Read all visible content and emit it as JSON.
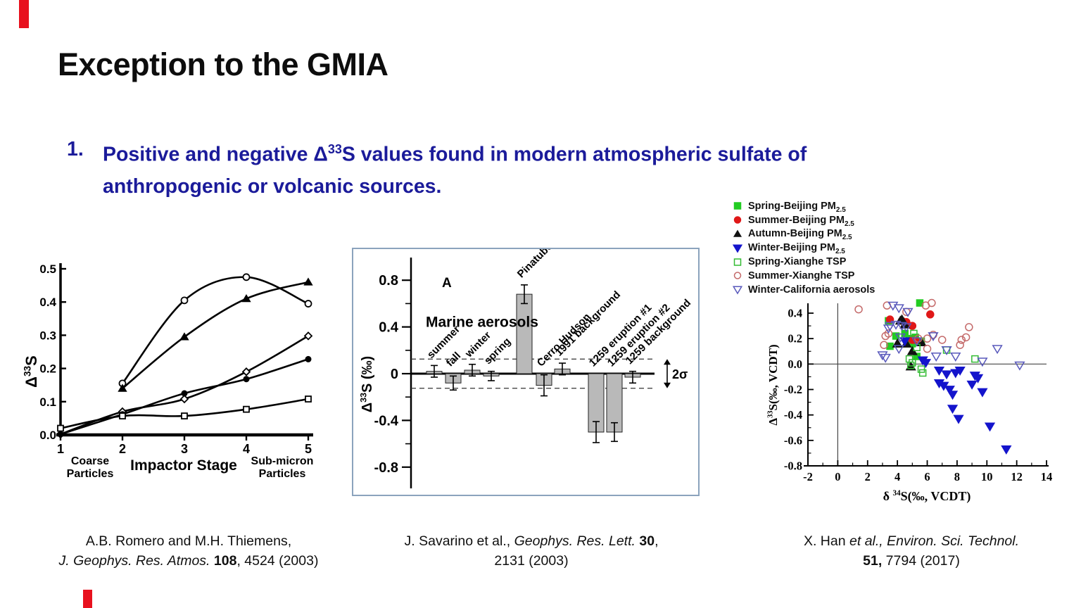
{
  "slide": {
    "title": "Exception to the GMIA",
    "accent_red": "#e8111e",
    "bullet": {
      "number": "1.",
      "line1_pre": "Positive and negative Δ",
      "line1_sup": "33",
      "line1_post": "S values found in modern atmospheric sulfate of",
      "line2": "anthropogenic or volcanic sources.",
      "color": "#1b1b9a"
    }
  },
  "citations": {
    "left": {
      "line1": "A.B. Romero and M.H. Thiemens,",
      "line2_italic": "J. Geophys. Res. Atmos. ",
      "line2_bold": "108",
      "line2_rest": ", 4524 (2003)"
    },
    "middle": {
      "line1_pre": "J. Savarino et al., ",
      "line1_italic": "Geophys. Res. Lett. ",
      "line1_bold": "30",
      "line1_rest": ",",
      "line2": "2131  (2003)"
    },
    "right": {
      "line1_pre": "X. Han ",
      "line1_italic": "et al., Environ. Sci. Technol.",
      "line2_bold": "51,",
      "line2_rest": " 7794 (2017)"
    }
  },
  "chart_data": [
    {
      "type": "line",
      "xlabel": "Impactor Stage",
      "ylabel": {
        "pre": "Δ",
        "sup": "33",
        "post": "S"
      },
      "x_annotation_left": [
        "Coarse",
        "Particles"
      ],
      "x_annotation_right": [
        "Sub-micron",
        "Particles"
      ],
      "xlim": [
        1,
        5
      ],
      "ylim": [
        0,
        0.5
      ],
      "xticks": [
        1,
        2,
        3,
        4,
        5
      ],
      "yticks": [
        0.0,
        0.1,
        0.2,
        0.3,
        0.4,
        0.5
      ],
      "series": [
        {
          "name": "open-circle",
          "marker": "circle-open",
          "points": [
            [
              2,
              0.155
            ],
            [
              3,
              0.405
            ],
            [
              4,
              0.475
            ],
            [
              5,
              0.395
            ]
          ]
        },
        {
          "name": "filled-triangle",
          "marker": "triangle-filled",
          "points": [
            [
              2,
              0.14
            ],
            [
              3,
              0.295
            ],
            [
              4,
              0.41
            ],
            [
              5,
              0.46
            ]
          ]
        },
        {
          "name": "open-diamond",
          "marker": "diamond-open",
          "points": [
            [
              1,
              0.002
            ],
            [
              2,
              0.07
            ],
            [
              3,
              0.108
            ],
            [
              4,
              0.19
            ],
            [
              5,
              0.298
            ]
          ]
        },
        {
          "name": "filled-circle",
          "marker": "circle-filled",
          "points": [
            [
              1,
              0.002
            ],
            [
              2,
              0.062
            ],
            [
              3,
              0.125
            ],
            [
              4,
              0.168
            ],
            [
              5,
              0.228
            ]
          ]
        },
        {
          "name": "open-square",
          "marker": "square-open",
          "points": [
            [
              1,
              0.02
            ],
            [
              2,
              0.057
            ],
            [
              3,
              0.057
            ],
            [
              4,
              0.077
            ],
            [
              5,
              0.108
            ]
          ]
        }
      ]
    },
    {
      "type": "bar",
      "panel_label": "A",
      "ylabel": {
        "pre": "Δ",
        "sup": "33",
        "post": "S (‰)"
      },
      "group_label": "Marine aerosols",
      "sigma_label": "2σ",
      "sigma_band": 0.125,
      "ylim": [
        -1.0,
        0.95
      ],
      "yticks_major": [
        0.8,
        0.4,
        0,
        -0.4,
        -0.8
      ],
      "yticks_minor": [
        0.6,
        0.2,
        -0.2,
        -0.6
      ],
      "categories": [
        "summer",
        "fall",
        "winter",
        "spring",
        "Pinatubo",
        "Cerro Hudson",
        "1991 background",
        "1259 eruption #1",
        "1259 eruption #2",
        "1259 background"
      ],
      "values": [
        0.02,
        -0.08,
        0.03,
        -0.02,
        0.68,
        -0.1,
        0.04,
        -0.5,
        -0.5,
        -0.03
      ],
      "errors": [
        0.05,
        0.06,
        0.05,
        0.04,
        0.08,
        0.09,
        0.05,
        0.09,
        0.08,
        0.05
      ],
      "bar_color": "#b9b9b9",
      "frame_color": "#8ba3bd"
    },
    {
      "type": "scatter",
      "xlabel": {
        "pre": "δ ",
        "sup": "34",
        "post": "S(‰, VCDT)"
      },
      "ylabel": {
        "pre": "Δ",
        "sup": "33",
        "post": "S(‰, VCDT)"
      },
      "xlim": [
        -2,
        14
      ],
      "ylim": [
        -0.8,
        0.4
      ],
      "xticks": [
        -2,
        0,
        2,
        4,
        6,
        8,
        10,
        12,
        14
      ],
      "yticks": [
        0.4,
        0.2,
        0.0,
        -0.2,
        -0.4,
        -0.6,
        -0.8
      ],
      "series": [
        {
          "name": "Spring-Beijing PM",
          "sub": "2.5",
          "marker": "square",
          "filled": true,
          "color": "#22cc22",
          "points": [
            [
              3.4,
              0.34
            ],
            [
              3.9,
              0.22
            ],
            [
              4.5,
              0.24
            ],
            [
              5.2,
              0.21
            ],
            [
              5.6,
              0.18
            ],
            [
              3.5,
              0.14
            ],
            [
              5.3,
              0.06
            ],
            [
              5.5,
              0.48
            ],
            [
              4.8,
              0.2
            ],
            [
              5.0,
              0.16
            ]
          ]
        },
        {
          "name": "Summer-Beijing PM",
          "sub": "2.5",
          "marker": "circle",
          "filled": true,
          "color": "#e01818",
          "points": [
            [
              3.5,
              0.35
            ],
            [
              4.3,
              0.34
            ],
            [
              5.0,
              0.3
            ],
            [
              5.2,
              0.19
            ],
            [
              6.2,
              0.39
            ],
            [
              4.6,
              0.33
            ],
            [
              5.0,
              0.19
            ]
          ]
        },
        {
          "name": "Autumn-Beijing PM",
          "sub": "2.5",
          "marker": "triangle-up",
          "filled": true,
          "color": "#111111",
          "points": [
            [
              4.3,
              0.35
            ],
            [
              4.5,
              0.31
            ],
            [
              4.0,
              0.16
            ],
            [
              4.6,
              0.16
            ],
            [
              5.6,
              0.17
            ],
            [
              5.0,
              0.1
            ],
            [
              4.9,
              -0.02
            ],
            [
              4.2,
              0.34
            ]
          ]
        },
        {
          "name": "Winter-Beijing PM",
          "sub": "2.5",
          "marker": "triangle-down",
          "filled": true,
          "color": "#1414cc",
          "points": [
            [
              5.7,
              0.03
            ],
            [
              6.8,
              -0.05
            ],
            [
              7.3,
              -0.08
            ],
            [
              7.9,
              -0.07
            ],
            [
              8.2,
              -0.05
            ],
            [
              9.2,
              -0.09
            ],
            [
              9.4,
              -0.11
            ],
            [
              6.8,
              -0.15
            ],
            [
              7.1,
              -0.17
            ],
            [
              7.5,
              -0.2
            ],
            [
              7.7,
              -0.24
            ],
            [
              9.0,
              -0.16
            ],
            [
              9.7,
              -0.22
            ],
            [
              7.7,
              -0.35
            ],
            [
              8.1,
              -0.43
            ],
            [
              10.2,
              -0.49
            ],
            [
              11.3,
              -0.67
            ],
            [
              4.5,
              0.18
            ],
            [
              5.9,
              0.01
            ]
          ]
        },
        {
          "name": "Spring-Xianghe TSP",
          "sub": "",
          "marker": "square",
          "filled": false,
          "color": "#33bb33",
          "points": [
            [
              5.1,
              0.24
            ],
            [
              5.3,
              0.13
            ],
            [
              4.8,
              0.04
            ],
            [
              5.0,
              0.01
            ],
            [
              5.6,
              -0.04
            ],
            [
              5.7,
              -0.07
            ],
            [
              9.2,
              0.04
            ],
            [
              7.3,
              0.11
            ],
            [
              4.9,
              -0.01
            ]
          ]
        },
        {
          "name": "Summer-Xianghe TSP",
          "sub": "",
          "marker": "circle",
          "filled": false,
          "color": "#c46a6a",
          "points": [
            [
              1.4,
              0.43
            ],
            [
              3.3,
              0.46
            ],
            [
              3.4,
              0.24
            ],
            [
              3.1,
              0.15
            ],
            [
              4.6,
              0.41
            ],
            [
              5.9,
              0.46
            ],
            [
              6.3,
              0.48
            ],
            [
              5.4,
              0.2
            ],
            [
              6.0,
              0.2
            ],
            [
              6.4,
              0.23
            ],
            [
              7.0,
              0.19
            ],
            [
              8.2,
              0.15
            ],
            [
              8.3,
              0.19
            ],
            [
              8.6,
              0.21
            ],
            [
              8.8,
              0.29
            ],
            [
              6.0,
              0.12
            ],
            [
              3.2,
              0.22
            ]
          ]
        },
        {
          "name": "Winter-California aerosols",
          "sub": "",
          "marker": "triangle-down",
          "filled": false,
          "color": "#5858bb",
          "points": [
            [
              3.7,
              0.46
            ],
            [
              4.1,
              0.44
            ],
            [
              4.7,
              0.41
            ],
            [
              3.4,
              0.28
            ],
            [
              4.3,
              0.3
            ],
            [
              4.6,
              0.29
            ],
            [
              4.2,
              0.21
            ],
            [
              6.4,
              0.22
            ],
            [
              3.0,
              0.07
            ],
            [
              3.2,
              0.05
            ],
            [
              7.3,
              0.11
            ],
            [
              7.9,
              0.06
            ],
            [
              9.7,
              0.02
            ],
            [
              10.7,
              0.12
            ],
            [
              12.2,
              -0.01
            ],
            [
              4.1,
              0.12
            ],
            [
              3.9,
              0.31
            ],
            [
              3.5,
              0.3
            ],
            [
              5.3,
              0.18
            ],
            [
              6.6,
              0.06
            ]
          ]
        }
      ]
    }
  ]
}
